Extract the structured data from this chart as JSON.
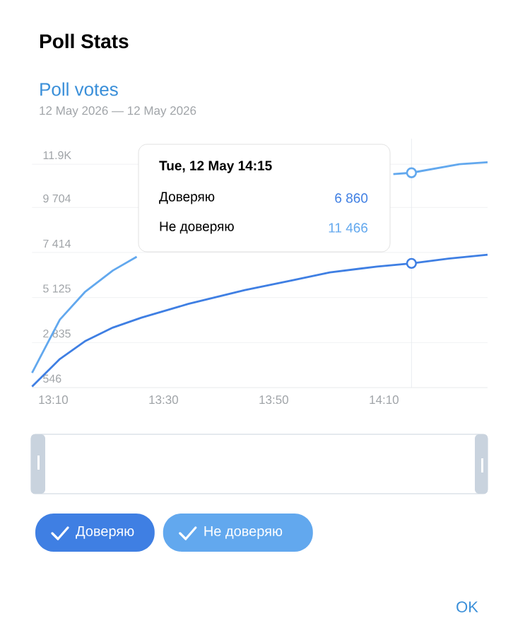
{
  "chart_data": {
    "type": "line",
    "title": "Poll Stats",
    "subtitle": "Poll votes",
    "annotations": [
      "12 May 2026 — 12 May 2026",
      "Tue, 12 May 14:15",
      "Доверяю",
      "6 860",
      "Не доверяю",
      "11 466",
      "OK"
    ],
    "series": [
      {
        "name": "Доверяю",
        "color": "#3f7fe3",
        "x": [
          13.1025,
          13.1865,
          13.262,
          13.347,
          13.433,
          13.575,
          13.746,
          13.889,
          14.003,
          14.146,
          14.25,
          14.362,
          14.48
        ],
        "values": [
          600,
          2000,
          2900,
          3600,
          4100,
          4800,
          5500,
          6000,
          6400,
          6700,
          6860,
          7100,
          7300
        ]
      },
      {
        "name": "Не доверяю",
        "color": "#62a8ee",
        "x": [
          13.1025,
          13.1865,
          13.262,
          13.347,
          13.419,
          13.8,
          14.195,
          14.25,
          14.395,
          14.48
        ],
        "values": [
          1300,
          4000,
          5400,
          6500,
          7200,
          null,
          11400,
          11466,
          11900,
          12000
        ]
      },
      {
        "type": "scatter",
        "marker": "circle",
        "color": "#3f7fe3",
        "x": [
          14.25
        ],
        "values": [
          6860
        ]
      },
      {
        "type": "scatter",
        "marker": "circle",
        "color": "#62a8ee",
        "x": [
          14.25
        ],
        "values": [
          11466
        ]
      }
    ],
    "xlim": [
      13.1025,
      14.48
    ],
    "xticks": [
      {
        "value": 13.1667,
        "label": "13:10"
      },
      {
        "value": 13.5,
        "label": "13:30"
      },
      {
        "value": 13.8333,
        "label": "13:50"
      },
      {
        "value": 14.1667,
        "label": "14:10"
      }
    ],
    "ylim": [
      546,
      13200
    ],
    "yticks": [
      546,
      {
        "value": 2835,
        "label": "2 835"
      },
      {
        "value": 5125,
        "label": "5 125"
      },
      {
        "value": 7414,
        "label": "7 414"
      },
      {
        "value": 9704,
        "label": "9 704"
      },
      {
        "value": 11900,
        "label": "11.9K"
      }
    ],
    "grid": "y",
    "legend": "bottom left",
    "ref_lines": [
      {
        "axis": "x",
        "value": 14.25,
        "color": "#e6e9ed"
      }
    ]
  }
}
